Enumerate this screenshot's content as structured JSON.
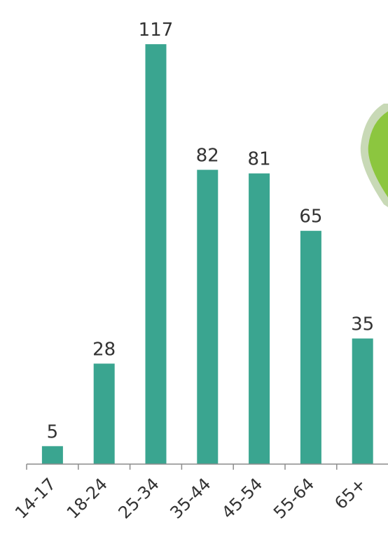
{
  "chart_data": {
    "type": "bar",
    "categories": [
      "14-17",
      "18-24",
      "25-34",
      "35-44",
      "45-54",
      "55-64",
      "65+"
    ],
    "values": [
      5,
      28,
      117,
      82,
      81,
      65,
      35
    ],
    "title": "",
    "xlabel": "",
    "ylabel": "",
    "ylim": [
      0,
      118
    ],
    "grid": false,
    "legend": "none",
    "data_labels": true,
    "x_tick_rotation": -45
  },
  "colors": {
    "bar": "#3aa590",
    "axis": "#8c8c8c",
    "text": "#333333",
    "callout_fill": "#8cc63f",
    "callout_border": "#c8d9b6"
  },
  "decorations": {
    "callout_icon": "green-rounded-callout-icon"
  }
}
